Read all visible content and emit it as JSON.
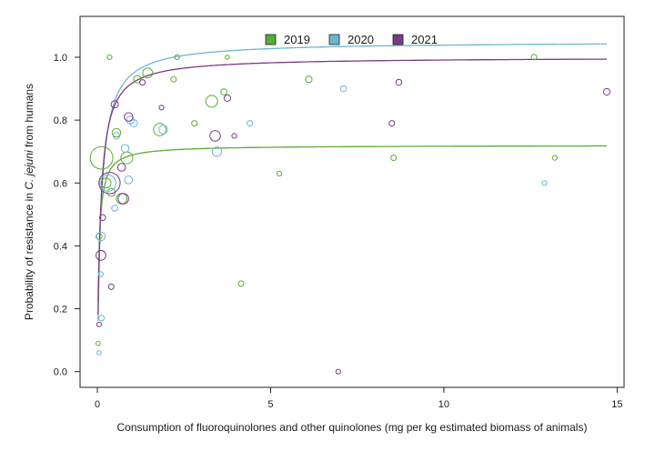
{
  "chart_data": {
    "type": "scatter",
    "xlabel": "Consumption of fluoroquinolones and other quinolones (mg per kg estimated biomass of animals)",
    "ylabel_parts": [
      "Probability of resistance in ",
      "C. jejuni",
      " from humans"
    ],
    "xlim": [
      -0.5,
      15.2
    ],
    "ylim": [
      -0.05,
      1.13
    ],
    "xticks": [
      0,
      5,
      10,
      15
    ],
    "yticks": [
      0.0,
      0.2,
      0.4,
      0.6,
      0.8,
      1.0
    ],
    "xtick_labels": [
      "0",
      "5",
      "10",
      "15"
    ],
    "ytick_labels": [
      "0.0",
      "0.2",
      "0.4",
      "0.6",
      "0.8",
      "1.0"
    ],
    "grid": false,
    "legend_position": "top-center",
    "series": [
      {
        "name": "2019",
        "color": "#5aac35",
        "curve": {
          "a": 0.72,
          "b": 0.045
        },
        "points": [
          [
            0.12,
            0.68,
            3.2
          ],
          [
            0.35,
            1.0,
            0.4
          ],
          [
            0.55,
            0.76,
            1.0
          ],
          [
            0.7,
            0.55,
            1.3
          ],
          [
            0.85,
            0.68,
            1.5
          ],
          [
            1.15,
            0.93,
            0.8
          ],
          [
            1.45,
            0.95,
            1.2
          ],
          [
            1.8,
            0.77,
            1.6
          ],
          [
            2.2,
            0.93,
            0.5
          ],
          [
            2.3,
            1.0,
            0.4
          ],
          [
            2.8,
            0.79,
            0.5
          ],
          [
            3.3,
            0.86,
            1.5
          ],
          [
            3.65,
            0.89,
            0.6
          ],
          [
            3.75,
            1.0,
            0.3
          ],
          [
            4.15,
            0.28,
            0.5
          ],
          [
            5.25,
            0.63,
            0.4
          ],
          [
            6.1,
            0.93,
            0.7
          ],
          [
            8.55,
            0.68,
            0.5
          ],
          [
            12.6,
            1.0,
            0.5
          ],
          [
            13.2,
            0.68,
            0.4
          ],
          [
            0.25,
            0.6,
            1.2
          ],
          [
            0.4,
            0.57,
            0.9
          ],
          [
            0.05,
            0.43,
            0.6
          ],
          [
            0.02,
            0.09,
            0.3
          ]
        ]
      },
      {
        "name": "2020",
        "color": "#6db6d0",
        "curve": {
          "a": 1.05,
          "b": 0.11
        },
        "points": [
          [
            0.1,
            0.43,
            1.0
          ],
          [
            0.12,
            0.17,
            0.5
          ],
          [
            0.1,
            0.31,
            0.4
          ],
          [
            0.3,
            0.6,
            2.2
          ],
          [
            0.55,
            0.75,
            0.7
          ],
          [
            0.8,
            0.71,
            0.9
          ],
          [
            0.95,
            0.8,
            0.9
          ],
          [
            1.05,
            0.79,
            0.8
          ],
          [
            1.9,
            0.77,
            1.0
          ],
          [
            3.45,
            0.7,
            1.1
          ],
          [
            4.4,
            0.79,
            0.5
          ],
          [
            7.1,
            0.9,
            0.6
          ],
          [
            12.9,
            0.6,
            0.4
          ],
          [
            0.05,
            0.06,
            0.3
          ],
          [
            0.9,
            0.61,
            0.9
          ],
          [
            0.5,
            0.52,
            0.6
          ]
        ]
      },
      {
        "name": "2021",
        "color": "#7a3a86",
        "curve": {
          "a": 1.0,
          "b": 0.09
        },
        "points": [
          [
            0.1,
            0.37,
            1.2
          ],
          [
            0.15,
            0.49,
            0.6
          ],
          [
            0.35,
            0.6,
            3.0
          ],
          [
            0.4,
            0.27,
            0.5
          ],
          [
            0.5,
            0.85,
            0.8
          ],
          [
            0.75,
            0.55,
            1.3
          ],
          [
            0.7,
            0.65,
            0.9
          ],
          [
            0.9,
            0.81,
            1.0
          ],
          [
            1.3,
            0.92,
            0.5
          ],
          [
            1.85,
            0.84,
            0.4
          ],
          [
            3.4,
            0.75,
            1.3
          ],
          [
            3.75,
            0.87,
            0.7
          ],
          [
            3.95,
            0.75,
            0.4
          ],
          [
            6.95,
            0.0,
            0.4
          ],
          [
            8.5,
            0.79,
            0.5
          ],
          [
            8.7,
            0.92,
            0.6
          ],
          [
            14.7,
            0.89,
            0.7
          ],
          [
            0.05,
            0.15,
            0.4
          ]
        ]
      }
    ]
  }
}
